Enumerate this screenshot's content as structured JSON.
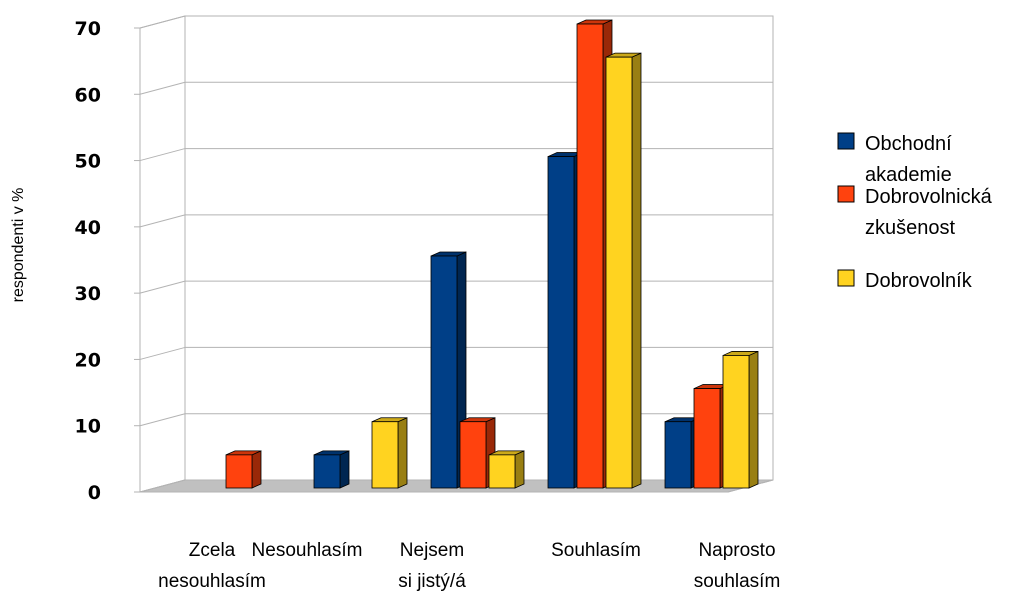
{
  "chart_data": {
    "type": "bar",
    "title": "",
    "xlabel": "",
    "ylabel": "respondenti v %",
    "ylim": [
      0,
      70
    ],
    "yticks": [
      "0",
      "10",
      "20",
      "30",
      "40",
      "50",
      "60",
      "70"
    ],
    "grid": true,
    "legend_position": "right",
    "categories": [
      [
        "Zcela",
        "nesouhlasím"
      ],
      [
        "Nesouhlasím"
      ],
      [
        "Nejsem",
        "si jistý/á"
      ],
      [
        "Souhlasím"
      ],
      [
        "Naprosto",
        "souhlasím"
      ]
    ],
    "series": [
      {
        "name": [
          "Obchodní",
          "akademie"
        ],
        "color": "#003f87",
        "values": [
          0,
          5,
          35,
          50,
          10
        ]
      },
      {
        "name": [
          "Dobrovolnická",
          "zkušenost"
        ],
        "color": "#ff420e",
        "values": [
          5,
          0,
          10,
          70,
          15
        ]
      },
      {
        "name": [
          "Dobrovolník"
        ],
        "color": "#ffd320",
        "values": [
          0,
          10,
          5,
          65,
          20
        ]
      }
    ]
  }
}
